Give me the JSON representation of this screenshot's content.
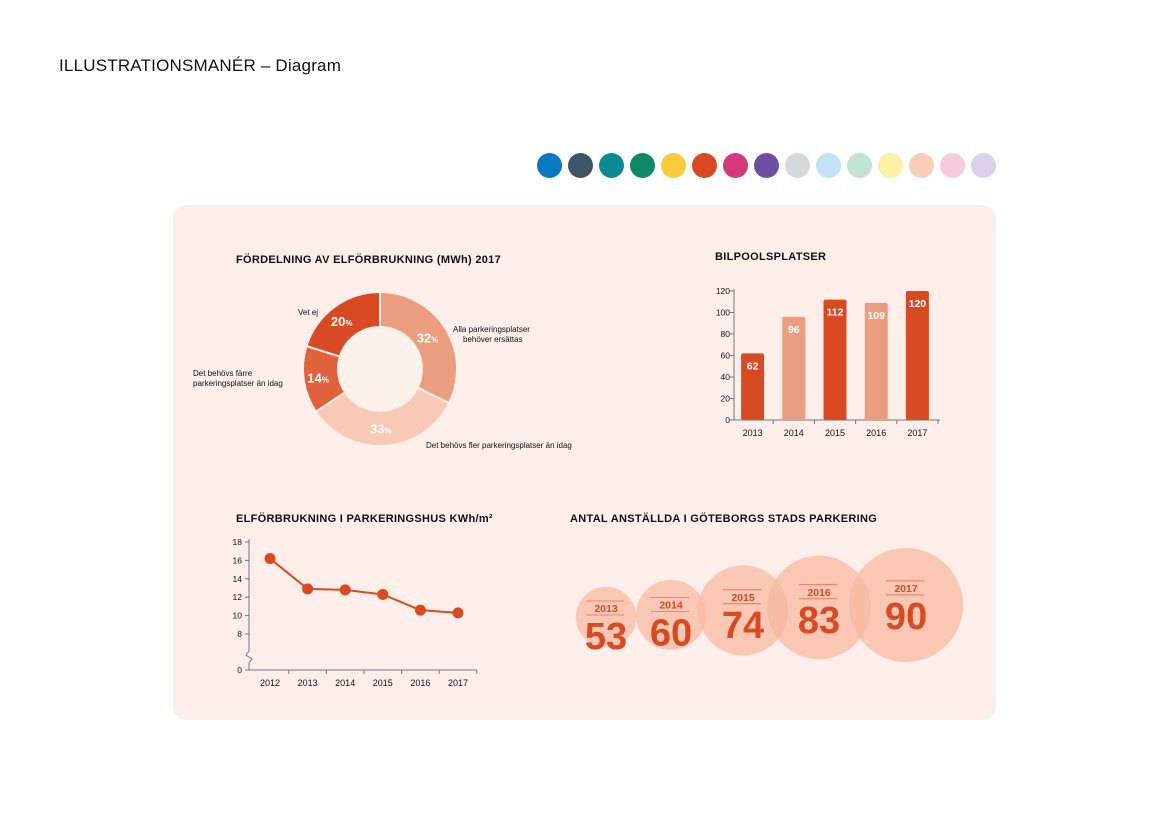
{
  "page": {
    "title": "ILLUSTRATIONSMANÉR – Diagram"
  },
  "palette": [
    {
      "name": "blue",
      "color": "#0a77c0"
    },
    {
      "name": "slate",
      "color": "#3f5465"
    },
    {
      "name": "teal",
      "color": "#0a8a95"
    },
    {
      "name": "green",
      "color": "#0d8a63"
    },
    {
      "name": "yellow",
      "color": "#f7cb3d"
    },
    {
      "name": "red-orange",
      "color": "#d84a23"
    },
    {
      "name": "magenta",
      "color": "#d6387c"
    },
    {
      "name": "purple",
      "color": "#6d4fa2"
    },
    {
      "name": "light-grey",
      "color": "#d3d9dd"
    },
    {
      "name": "light-blue",
      "color": "#c4e2f5"
    },
    {
      "name": "light-green",
      "color": "#c2e3d2"
    },
    {
      "name": "light-yellow",
      "color": "#fdf1a5"
    },
    {
      "name": "light-peach",
      "color": "#f9cdb9"
    },
    {
      "name": "light-pink",
      "color": "#f7cbdb"
    },
    {
      "name": "light-lavender",
      "color": "#ddd0ea"
    }
  ],
  "chart_data": [
    {
      "type": "pie",
      "title": "FÖRDELNING AV ELFÖRBRUKNING (MWh) 2017",
      "percent_sign": "%",
      "slices": [
        {
          "label_lines": [
            "Alla parkeringsplatser",
            "behöver ersättas"
          ],
          "value": 32,
          "color": "#eb9d80"
        },
        {
          "label_lines": [
            "Det behövs fler parkeringsplatser än idag"
          ],
          "value": 33,
          "color": "#f8c9b6"
        },
        {
          "label_lines": [
            "Det behövs färre",
            "parkeringsplatser än idag"
          ],
          "value": 14,
          "color": "#e0623d"
        },
        {
          "label_lines": [
            "Vet ej"
          ],
          "value": 20,
          "color": "#d84a23"
        }
      ]
    },
    {
      "type": "bar",
      "title": "BILPOOLSPLATSER",
      "categories": [
        "2013",
        "2014",
        "2015",
        "2016",
        "2017"
      ],
      "values": [
        62,
        96,
        112,
        109,
        120
      ],
      "colors": [
        "#d84a23",
        "#eb9d80",
        "#d84a23",
        "#eb9d80",
        "#d84a23"
      ],
      "ylim": [
        0,
        120
      ],
      "yticks": [
        0,
        20,
        40,
        60,
        80,
        100,
        120
      ]
    },
    {
      "type": "line",
      "title": "ELFÖRBRUKNING I PARKERINGSHUS KWh/m²",
      "x": [
        "2012",
        "2013",
        "2014",
        "2015",
        "2016",
        "2017"
      ],
      "values": [
        16.2,
        12.9,
        12.8,
        12.3,
        10.6,
        10.3
      ],
      "yticks": [
        0,
        8,
        10,
        12,
        14,
        16,
        18
      ],
      "ylim": [
        0,
        18
      ],
      "axis_break": true,
      "color": "#d84a23"
    },
    {
      "type": "bubble",
      "title": "ANTAL ANSTÄLLDA I GÖTEBORGS STADS PARKERING",
      "categories": [
        "2013",
        "2014",
        "2015",
        "2016",
        "2017"
      ],
      "values": [
        53,
        60,
        74,
        83,
        90
      ],
      "color": "#d84a23",
      "fill": "#f7b89f"
    }
  ]
}
